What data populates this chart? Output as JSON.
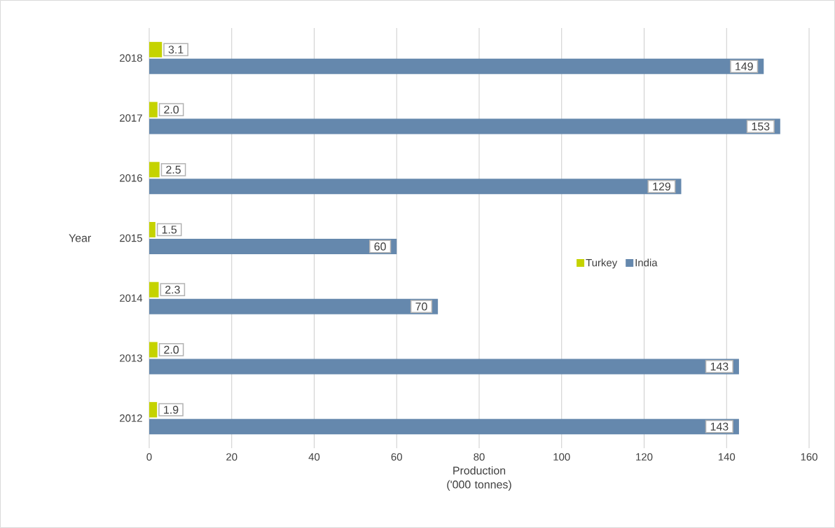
{
  "chart_data": {
    "type": "bar",
    "orientation": "horizontal",
    "categories": [
      "2018",
      "2017",
      "2016",
      "2015",
      "2014",
      "2013",
      "2012"
    ],
    "series": [
      {
        "name": "Turkey",
        "color": "#c5d300",
        "values": [
          3.1,
          2.0,
          2.5,
          1.5,
          2.3,
          2.0,
          1.9
        ],
        "value_labels": [
          "3.1",
          "2.0",
          "2.5",
          "1.5",
          "2.3",
          "2.0",
          "1.9"
        ]
      },
      {
        "name": "India",
        "color": "#6588ad",
        "values": [
          149,
          153,
          129,
          60,
          70,
          143,
          143
        ],
        "value_labels": [
          "149",
          "153",
          "129",
          "60",
          "70",
          "143",
          "143"
        ]
      }
    ],
    "xlabel": "Production ('000 tonnes)",
    "ylabel": "Year",
    "xlim": [
      0,
      160
    ],
    "xticks": [
      0,
      20,
      40,
      60,
      80,
      100,
      120,
      140,
      160
    ],
    "grid": "x",
    "legend": "right"
  }
}
